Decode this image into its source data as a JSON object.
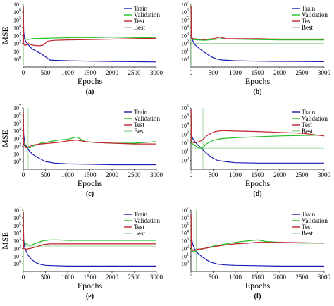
{
  "colors": {
    "train": "#1a1ab4",
    "validation": "#22c022",
    "test": "#c0222e",
    "best": "#9ad69a"
  },
  "chart_data": [
    {
      "type": "line",
      "panel_label": "(a)",
      "xlabel": "Epochs",
      "ylabel": "MSE",
      "xlim": [
        0,
        3000
      ],
      "ylim_exp": [
        -1,
        7
      ],
      "yscale": "log",
      "xticks": [
        "0",
        "500",
        "1000",
        "1500",
        "2000",
        "2500",
        "3000"
      ],
      "yticks": [
        {
          "base": "10",
          "exp": "0"
        },
        {
          "base": "10",
          "exp": "1"
        },
        {
          "base": "10",
          "exp": "2"
        },
        {
          "base": "10",
          "exp": "3"
        },
        {
          "base": "10",
          "exp": "4"
        },
        {
          "base": "10",
          "exp": "5"
        },
        {
          "base": "10",
          "exp": "6"
        },
        {
          "base": "10",
          "exp": "7"
        }
      ],
      "legend": [
        "Train",
        "Validation",
        "Test",
        "Best"
      ],
      "legend_position": "top-right",
      "best_epoch": 5,
      "series": [
        {
          "name": "Train",
          "color_key": "train",
          "x": [
            0,
            10,
            30,
            60,
            100,
            150,
            200,
            300,
            400,
            500,
            600,
            700,
            1000,
            1500,
            2000,
            2500,
            3000
          ],
          "log10_y": [
            6.8,
            3.5,
            2.6,
            2.2,
            1.9,
            1.6,
            1.3,
            1.0,
            0.7,
            0.3,
            -0.1,
            -0.15,
            -0.2,
            -0.25,
            -0.3,
            -0.32,
            -0.35
          ]
        },
        {
          "name": "Validation",
          "color_key": "validation",
          "x": [
            0,
            10,
            40,
            100,
            200,
            500,
            800,
            1200,
            1600,
            2000,
            2500,
            3000
          ],
          "log10_y": [
            6.8,
            2.5,
            2.6,
            2.5,
            2.6,
            2.65,
            2.7,
            2.75,
            2.75,
            2.8,
            2.75,
            2.7
          ]
        },
        {
          "name": "Test",
          "color_key": "test",
          "x": [
            0,
            10,
            40,
            100,
            200,
            350,
            450,
            550,
            700,
            1000,
            1500,
            2000,
            2500,
            3000
          ],
          "log10_y": [
            6.8,
            2.0,
            1.7,
            2.0,
            1.8,
            1.7,
            1.8,
            2.3,
            2.4,
            2.45,
            2.5,
            2.55,
            2.6,
            2.65
          ]
        },
        {
          "name": "Best",
          "color_key": "best",
          "x": [
            0,
            3000
          ],
          "log10_y": [
            2.2,
            2.2
          ]
        }
      ]
    },
    {
      "type": "line",
      "panel_label": "(b)",
      "xlabel": "Epochs",
      "ylabel": "",
      "xlim": [
        0,
        3000
      ],
      "ylim_exp": [
        -1,
        7
      ],
      "yscale": "log",
      "xticks": [
        "0",
        "500",
        "1000",
        "1500",
        "2000",
        "2500",
        "3000"
      ],
      "yticks": [
        {
          "base": "10",
          "exp": "0"
        },
        {
          "base": "10",
          "exp": "1"
        },
        {
          "base": "10",
          "exp": "2"
        },
        {
          "base": "10",
          "exp": "3"
        },
        {
          "base": "10",
          "exp": "4"
        },
        {
          "base": "10",
          "exp": "5"
        },
        {
          "base": "10",
          "exp": "6"
        },
        {
          "base": "10",
          "exp": "7"
        }
      ],
      "legend": [
        "Train",
        "Validation",
        "Test",
        "Best"
      ],
      "legend_position": "top-right",
      "best_epoch": 5,
      "series": [
        {
          "name": "Train",
          "color_key": "train",
          "x": [
            0,
            10,
            30,
            60,
            100,
            200,
            300,
            400,
            500,
            600,
            700,
            1000,
            1500,
            2000,
            2500,
            3000
          ],
          "log10_y": [
            6.8,
            3.5,
            2.5,
            2.1,
            1.8,
            1.3,
            0.9,
            0.5,
            0.2,
            0.0,
            -0.1,
            -0.2,
            -0.25,
            -0.28,
            -0.3,
            -0.32
          ]
        },
        {
          "name": "Validation",
          "color_key": "validation",
          "x": [
            0,
            10,
            50,
            150,
            300,
            500,
            700,
            1000,
            1500,
            2000,
            2500,
            3000
          ],
          "log10_y": [
            6.8,
            2.6,
            2.5,
            2.45,
            2.4,
            2.5,
            2.6,
            2.55,
            2.5,
            2.45,
            2.45,
            2.45
          ]
        },
        {
          "name": "Test",
          "color_key": "test",
          "x": [
            0,
            10,
            50,
            150,
            300,
            500,
            650,
            800,
            1000,
            1500,
            2000,
            2500,
            3000
          ],
          "log10_y": [
            6.8,
            2.7,
            2.6,
            2.55,
            2.5,
            2.6,
            2.8,
            2.6,
            2.6,
            2.6,
            2.55,
            2.55,
            2.55
          ]
        },
        {
          "name": "Best",
          "color_key": "best",
          "x": [
            0,
            3000
          ],
          "log10_y": [
            2.0,
            2.0
          ]
        }
      ]
    },
    {
      "type": "line",
      "panel_label": "(c)",
      "xlabel": "Epochs",
      "ylabel": "MSE",
      "xlim": [
        0,
        3000
      ],
      "ylim_exp": [
        -1,
        7
      ],
      "yscale": "log",
      "xticks": [
        "0",
        "500",
        "1000",
        "1500",
        "2000",
        "2500",
        "3000"
      ],
      "yticks": [
        {
          "base": "10",
          "exp": "0"
        },
        {
          "base": "10",
          "exp": "1"
        },
        {
          "base": "10",
          "exp": "2"
        },
        {
          "base": "10",
          "exp": "3"
        },
        {
          "base": "10",
          "exp": "4"
        },
        {
          "base": "10",
          "exp": "5"
        },
        {
          "base": "10",
          "exp": "6"
        },
        {
          "base": "10",
          "exp": "7"
        }
      ],
      "legend": [
        "Train",
        "Validation",
        "Test",
        "Best"
      ],
      "legend_position": "top-right",
      "best_epoch": 110,
      "series": [
        {
          "name": "Train",
          "color_key": "train",
          "x": [
            0,
            10,
            40,
            80,
            120,
            200,
            300,
            400,
            500,
            700,
            1000,
            1500,
            2000,
            2500,
            3000
          ],
          "log10_y": [
            6.5,
            3.5,
            2.3,
            1.9,
            1.5,
            1.0,
            0.6,
            0.3,
            0.0,
            -0.2,
            -0.3,
            -0.35,
            -0.4,
            -0.4,
            -0.4
          ]
        },
        {
          "name": "Validation",
          "color_key": "validation",
          "x": [
            0,
            10,
            60,
            150,
            250,
            400,
            600,
            800,
            1000,
            1200,
            1400,
            1600,
            2000,
            2500,
            3000
          ],
          "log10_y": [
            6.5,
            2.5,
            1.9,
            1.8,
            2.1,
            2.4,
            2.6,
            2.8,
            2.9,
            3.2,
            2.6,
            2.5,
            2.4,
            2.4,
            2.6
          ]
        },
        {
          "name": "Test",
          "color_key": "test",
          "x": [
            0,
            10,
            60,
            150,
            250,
            400,
            600,
            800,
            1000,
            1200,
            1400,
            1600,
            2000,
            2500,
            3000
          ],
          "log10_y": [
            6.5,
            2.2,
            1.8,
            2.0,
            2.2,
            2.3,
            2.4,
            2.5,
            2.7,
            2.8,
            2.6,
            2.5,
            2.4,
            2.3,
            2.3
          ]
        },
        {
          "name": "Best",
          "color_key": "best",
          "x": [
            0,
            3000
          ],
          "log10_y": [
            1.9,
            1.9
          ]
        }
      ]
    },
    {
      "type": "line",
      "panel_label": "(d)",
      "xlabel": "Epochs",
      "ylabel": "",
      "xlim": [
        0,
        3000
      ],
      "ylim_exp": [
        -1,
        6
      ],
      "yscale": "log",
      "xticks": [
        "0",
        "500",
        "1000",
        "1500",
        "2000",
        "2500",
        "3000"
      ],
      "yticks": [
        {
          "base": "10",
          "exp": "0"
        },
        {
          "base": "10",
          "exp": "1"
        },
        {
          "base": "10",
          "exp": "2"
        },
        {
          "base": "10",
          "exp": "3"
        },
        {
          "base": "10",
          "exp": "4"
        },
        {
          "base": "10",
          "exp": "5"
        },
        {
          "base": "10",
          "exp": "6"
        }
      ],
      "legend": [
        "Train",
        "Validation",
        "Test",
        "Best"
      ],
      "legend_position": "top-right",
      "best_epoch": 270,
      "series": [
        {
          "name": "Train",
          "color_key": "train",
          "x": [
            0,
            10,
            40,
            80,
            150,
            250,
            350,
            450,
            600,
            800,
            1000,
            1500,
            2000,
            2500,
            3000
          ],
          "log10_y": [
            5.8,
            3.0,
            2.5,
            2.2,
            1.8,
            1.3,
            0.8,
            0.4,
            0.0,
            -0.15,
            -0.25,
            -0.3,
            -0.3,
            -0.3,
            -0.3
          ]
        },
        {
          "name": "Validation",
          "color_key": "validation",
          "x": [
            0,
            10,
            60,
            150,
            250,
            350,
            500,
            700,
            1000,
            1500,
            2000,
            2500,
            3000
          ],
          "log10_y": [
            5.8,
            2.0,
            1.8,
            1.5,
            1.4,
            1.9,
            2.3,
            2.5,
            2.6,
            2.7,
            2.8,
            2.85,
            2.9
          ]
        },
        {
          "name": "Test",
          "color_key": "test",
          "x": [
            0,
            10,
            60,
            150,
            250,
            350,
            450,
            550,
            700,
            1000,
            1500,
            2000,
            2500,
            3000
          ],
          "log10_y": [
            5.8,
            2.2,
            2.0,
            2.1,
            2.3,
            2.8,
            3.1,
            3.3,
            3.4,
            3.35,
            3.3,
            3.2,
            3.1,
            2.8
          ]
        },
        {
          "name": "Best",
          "color_key": "best",
          "x": [
            0,
            3000
          ],
          "log10_y": [
            1.4,
            1.4
          ]
        }
      ]
    },
    {
      "type": "line",
      "panel_label": "(e)",
      "xlabel": "Epochs",
      "ylabel": "MSE",
      "xlim": [
        0,
        3000
      ],
      "ylim_exp": [
        -1,
        7
      ],
      "yscale": "log",
      "xticks": [
        "0",
        "500",
        "1000",
        "1500",
        "2000",
        "2500",
        "3000"
      ],
      "yticks": [
        {
          "base": "10",
          "exp": "0"
        },
        {
          "base": "10",
          "exp": "1"
        },
        {
          "base": "10",
          "exp": "2"
        },
        {
          "base": "10",
          "exp": "3"
        },
        {
          "base": "10",
          "exp": "4"
        },
        {
          "base": "10",
          "exp": "5"
        },
        {
          "base": "10",
          "exp": "6"
        },
        {
          "base": "10",
          "exp": "7"
        }
      ],
      "legend": [
        "Train",
        "Validation",
        "Test",
        "Best"
      ],
      "legend_position": "top-right",
      "best_epoch": 5,
      "series": [
        {
          "name": "Train",
          "color_key": "train",
          "x": [
            0,
            10,
            30,
            60,
            100,
            150,
            200,
            300,
            400,
            500,
            700,
            1000,
            1500,
            2000,
            2500,
            3000
          ],
          "log10_y": [
            6.8,
            3.2,
            2.2,
            1.7,
            1.2,
            0.8,
            0.5,
            0.1,
            -0.1,
            -0.2,
            -0.25,
            -0.3,
            -0.3,
            -0.3,
            -0.3,
            -0.3
          ]
        },
        {
          "name": "Validation",
          "color_key": "validation",
          "x": [
            0,
            10,
            60,
            150,
            300,
            450,
            600,
            800,
            1000,
            1500,
            2000,
            2500,
            3000
          ],
          "log10_y": [
            6.8,
            2.9,
            2.6,
            2.4,
            2.7,
            3.0,
            3.1,
            3.1,
            3.05,
            3.05,
            3.05,
            3.05,
            3.05
          ]
        },
        {
          "name": "Test",
          "color_key": "test",
          "x": [
            0,
            10,
            60,
            150,
            300,
            450,
            600,
            800,
            1000,
            1500,
            2000,
            2500,
            3000
          ],
          "log10_y": [
            6.8,
            2.0,
            1.9,
            2.0,
            2.2,
            2.5,
            2.6,
            2.6,
            2.6,
            2.6,
            2.6,
            2.6,
            2.6
          ]
        },
        {
          "name": "Best",
          "color_key": "best",
          "x": [
            0,
            3000
          ],
          "log10_y": [
            2.3,
            2.3
          ]
        }
      ]
    },
    {
      "type": "line",
      "panel_label": "(f)",
      "xlabel": "Epochs",
      "ylabel": "",
      "xlim": [
        0,
        3000
      ],
      "ylim_exp": [
        -1,
        7
      ],
      "yscale": "log",
      "xticks": [
        "0",
        "500",
        "1000",
        "1500",
        "2000",
        "2500",
        "3000"
      ],
      "yticks": [
        {
          "base": "10",
          "exp": "0"
        },
        {
          "base": "10",
          "exp": "1"
        },
        {
          "base": "10",
          "exp": "2"
        },
        {
          "base": "10",
          "exp": "3"
        },
        {
          "base": "10",
          "exp": "4"
        },
        {
          "base": "10",
          "exp": "5"
        },
        {
          "base": "10",
          "exp": "6"
        },
        {
          "base": "10",
          "exp": "7"
        }
      ],
      "legend": [
        "Train",
        "Validation",
        "Test",
        "Best"
      ],
      "legend_position": "top-right",
      "best_epoch": 120,
      "series": [
        {
          "name": "Train",
          "color_key": "train",
          "x": [
            0,
            10,
            40,
            80,
            150,
            250,
            350,
            450,
            600,
            800,
            1000,
            1500,
            2000,
            2500,
            3000
          ],
          "log10_y": [
            6.5,
            3.5,
            2.5,
            2.0,
            1.4,
            0.9,
            0.5,
            0.2,
            -0.05,
            -0.15,
            -0.2,
            -0.25,
            -0.3,
            -0.3,
            -0.3
          ]
        },
        {
          "name": "Validation",
          "color_key": "validation",
          "x": [
            0,
            10,
            60,
            150,
            300,
            500,
            700,
            1000,
            1300,
            1500,
            1700,
            2000,
            2500,
            3000
          ],
          "log10_y": [
            6.5,
            1.8,
            1.5,
            1.8,
            2.0,
            2.3,
            2.5,
            2.8,
            3.0,
            3.1,
            2.9,
            2.8,
            2.7,
            2.7
          ]
        },
        {
          "name": "Test",
          "color_key": "test",
          "x": [
            0,
            10,
            60,
            150,
            300,
            500,
            700,
            1000,
            1300,
            1500,
            1700,
            2000,
            2500,
            3000
          ],
          "log10_y": [
            6.5,
            2.0,
            1.7,
            1.9,
            2.0,
            2.2,
            2.4,
            2.6,
            2.7,
            2.8,
            2.8,
            2.8,
            2.75,
            2.7
          ]
        },
        {
          "name": "Best",
          "color_key": "best",
          "x": [
            0,
            3000
          ],
          "log10_y": [
            1.8,
            1.8
          ]
        }
      ]
    }
  ]
}
